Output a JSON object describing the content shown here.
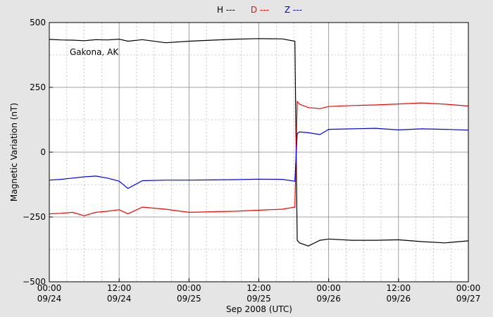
{
  "chart_data": {
    "type": "line",
    "annotation": "Gakona, AK",
    "xlabel": "Sep 2008 (UTC)",
    "ylabel": "Magnetic Variation (nT)",
    "x": [
      0,
      2,
      4,
      6,
      8,
      10,
      12,
      13.5,
      16,
      20,
      24,
      28,
      32,
      36,
      40,
      42.2,
      42.6,
      43,
      44.5,
      46.5,
      48,
      52,
      56,
      60,
      64,
      68,
      72
    ],
    "series": [
      {
        "name": "H ---",
        "color": "#000000",
        "values": [
          435,
          433,
          432,
          430,
          434,
          433,
          436,
          428,
          434,
          422,
          428,
          432,
          436,
          438,
          437,
          428,
          -340,
          -350,
          -362,
          -340,
          -335,
          -340,
          -340,
          -338,
          -345,
          -350,
          -342
        ]
      },
      {
        "name": "D ---",
        "color": "#ff0000",
        "values": [
          -238,
          -236,
          -232,
          -245,
          -232,
          -228,
          -222,
          -238,
          -212,
          -220,
          -232,
          -230,
          -228,
          -224,
          -220,
          -212,
          195,
          185,
          172,
          168,
          176,
          180,
          182,
          186,
          190,
          185,
          178
        ]
      },
      {
        "name": "Z ---",
        "color": "#0000ff",
        "values": [
          -108,
          -105,
          -100,
          -95,
          -92,
          -100,
          -112,
          -140,
          -110,
          -108,
          -108,
          -107,
          -106,
          -104,
          -105,
          -112,
          72,
          78,
          75,
          68,
          88,
          90,
          92,
          86,
          90,
          88,
          85
        ]
      }
    ],
    "xlim": [
      0,
      72
    ],
    "xticks": [
      {
        "value": 0,
        "label": "00:00"
      },
      {
        "value": 12,
        "label": "12:00"
      },
      {
        "value": 24,
        "label": "00:00"
      },
      {
        "value": 36,
        "label": "12:00"
      },
      {
        "value": 48,
        "label": "00:00"
      },
      {
        "value": 60,
        "label": "12:00"
      },
      {
        "value": 72,
        "label": "00:00"
      }
    ],
    "xtick_dates": [
      "09/24",
      "09/24",
      "09/25",
      "09/25",
      "09/26",
      "09/26",
      "09/27"
    ],
    "ylim": [
      -500,
      500
    ],
    "yticks": [
      {
        "value": -500,
        "label": "−500"
      },
      {
        "value": -250,
        "label": "−250"
      },
      0,
      250,
      500
    ],
    "grid": true,
    "minor_grid": true
  }
}
